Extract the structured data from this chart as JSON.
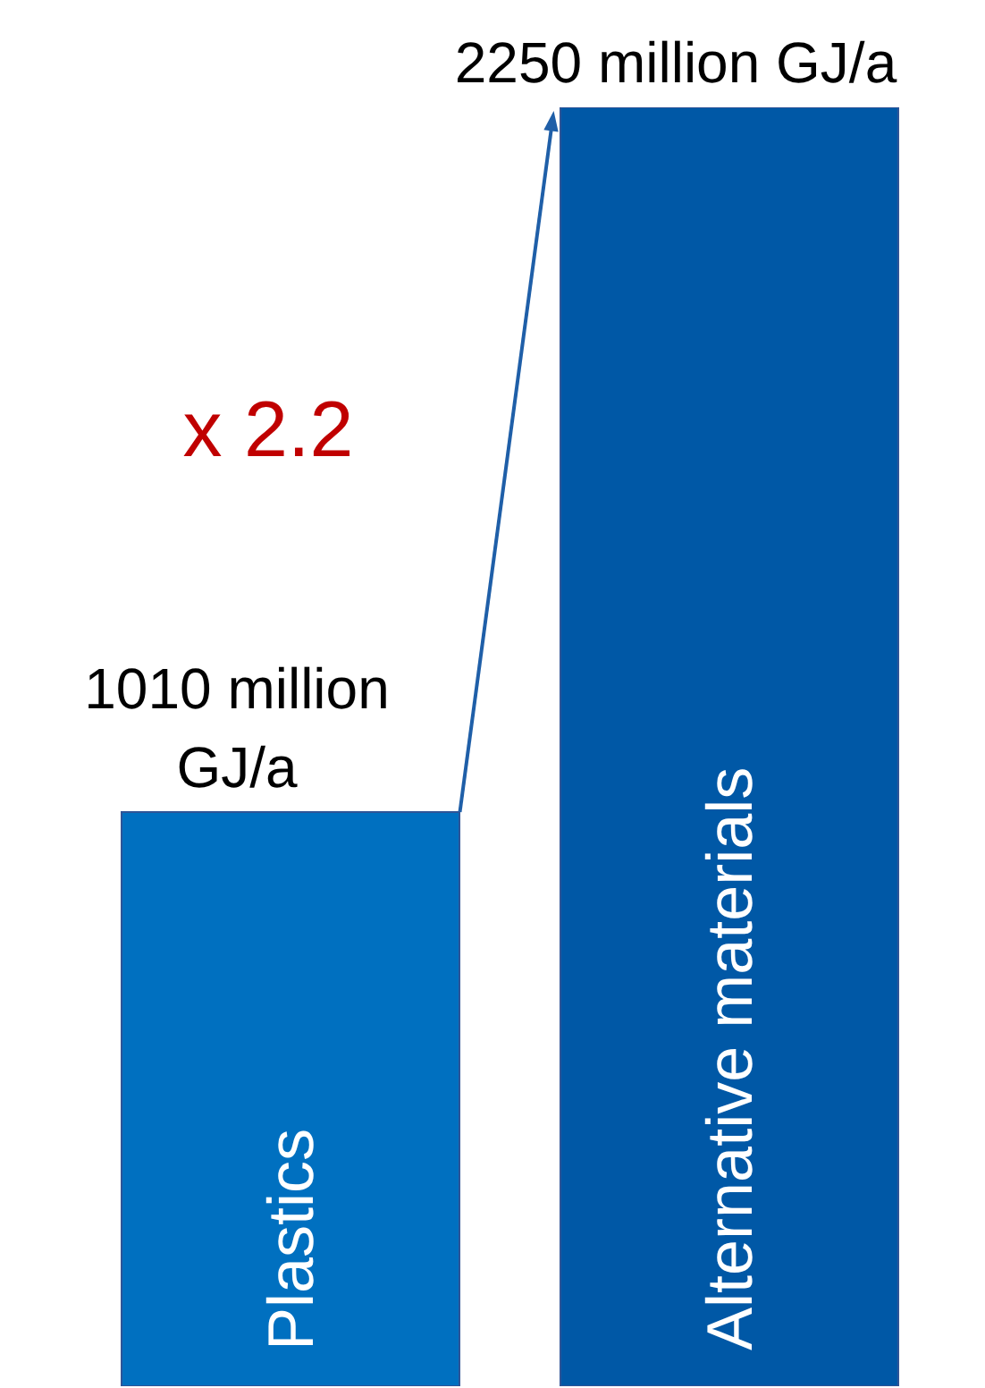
{
  "chart_data": {
    "type": "bar",
    "categories": [
      "Plastics",
      "Alternative materials"
    ],
    "values": [
      1010,
      2250
    ],
    "colors": [
      "#0070c0",
      "#0058a6"
    ],
    "value_labels": [
      "1010 million GJ/a",
      "2250 million GJ/a"
    ],
    "annotations": [
      "x 2.2"
    ],
    "grid": false,
    "legend": false
  }
}
